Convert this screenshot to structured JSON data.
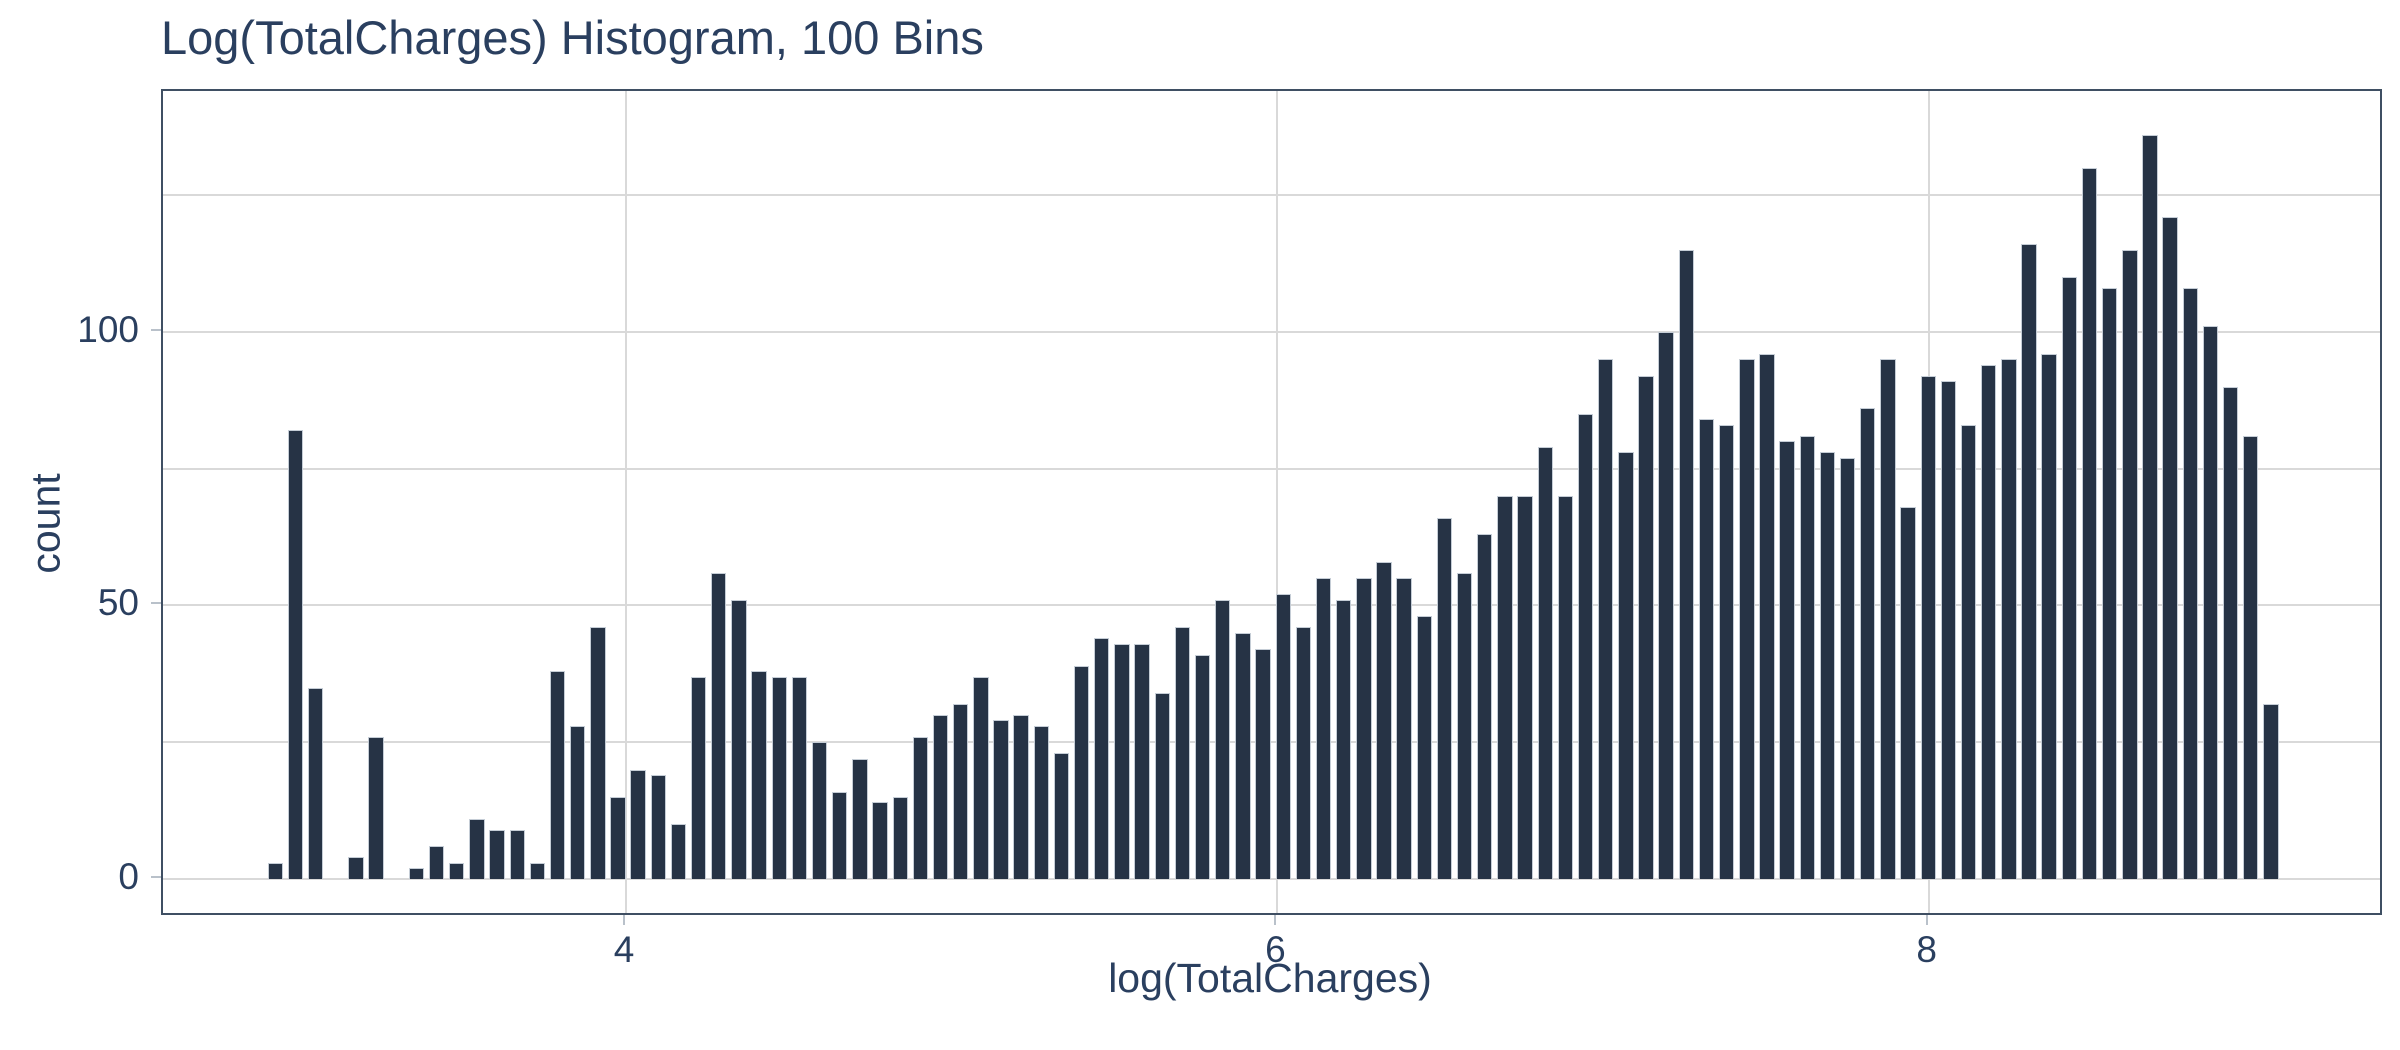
{
  "title": "Log(TotalCharges) Histogram, 100 Bins",
  "colors": {
    "bar_fill": "#263345",
    "bar_outline": "#c5cdd6",
    "text": "#2a3f5f",
    "gridline": "#d9d9d9",
    "axis_border": "#3f4f63",
    "background": "#ffffff"
  },
  "chart_data": {
    "type": "bar",
    "subtype": "histogram",
    "title": "Log(TotalCharges) Histogram, 100 Bins",
    "xlabel": "log(TotalCharges)",
    "ylabel": "count",
    "n_bins": 100,
    "bin_start": 2.892,
    "bin_width": 0.0619,
    "x_ticks": [
      4,
      6,
      8
    ],
    "y_ticks": [
      0,
      50,
      100
    ],
    "y_grid_step": 25,
    "y_grid_max": 125,
    "xlim": [
      2.578,
      9.386
    ],
    "ylim": [
      -6.2,
      144
    ],
    "grid": "on",
    "legend": "none",
    "counts": [
      3,
      82,
      35,
      0,
      4,
      26,
      0,
      2,
      6,
      3,
      11,
      9,
      9,
      3,
      38,
      28,
      46,
      15,
      20,
      19,
      10,
      37,
      56,
      51,
      38,
      37,
      37,
      25,
      16,
      22,
      14,
      15,
      26,
      30,
      32,
      37,
      29,
      30,
      28,
      23,
      39,
      44,
      43,
      43,
      34,
      46,
      41,
      51,
      45,
      42,
      52,
      46,
      55,
      51,
      55,
      58,
      55,
      48,
      66,
      56,
      63,
      70,
      70,
      79,
      70,
      85,
      95,
      78,
      92,
      100,
      115,
      84,
      83,
      95,
      96,
      80,
      81,
      78,
      77,
      86,
      95,
      68,
      92,
      91,
      83,
      94,
      95,
      116,
      96,
      110,
      130,
      108,
      115,
      136,
      121,
      108,
      101,
      90,
      81,
      32
    ]
  }
}
